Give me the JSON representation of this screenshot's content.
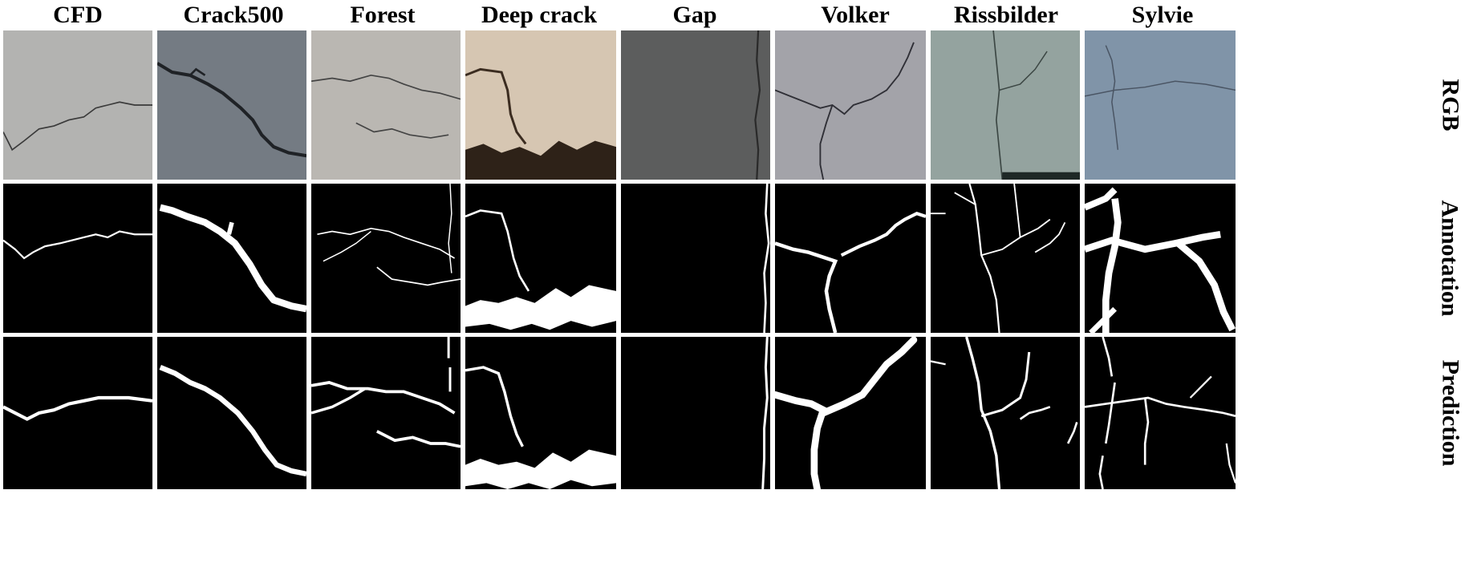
{
  "columns": [
    "CFD",
    "Crack500",
    "Forest",
    "Deep crack",
    "Gap",
    "Volker",
    "Rissbilder",
    "Sylvie"
  ],
  "rows": [
    "RGB",
    "Annotation",
    "Prediction"
  ],
  "colors": {
    "background": "#ffffff",
    "mask_background": "#000000",
    "mask_foreground": "#ffffff",
    "crack_line": "#2c2c2c",
    "rgb_tiles": [
      "#b3b3b1",
      "#747b83",
      "#bab7b2",
      "#d6c6b2",
      "#5c5d5d",
      "#a3a3a9",
      "#94a39f",
      "#8094a8"
    ]
  }
}
